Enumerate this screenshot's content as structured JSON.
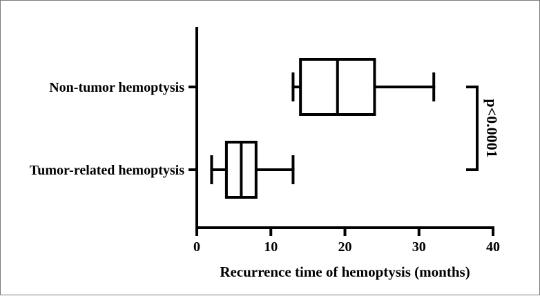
{
  "chart_data": {
    "type": "boxplot",
    "orientation": "horizontal",
    "xlabel": "Recurrence time of hemoptysis (months)",
    "xlim": [
      0,
      40
    ],
    "xticks": [
      "0",
      "10",
      "20",
      "30",
      "40"
    ],
    "grid": false,
    "categories": [
      "Non-tumor hemoptysis",
      "Tumor-related hemoptysis"
    ],
    "boxes": [
      {
        "category": "Non-tumor hemoptysis",
        "min": 13,
        "q1": 14,
        "median": 19,
        "q3": 24,
        "max": 32
      },
      {
        "category": "Tumor-related hemoptysis",
        "min": 2,
        "q1": 4,
        "median": 6,
        "q3": 8,
        "max": 13
      }
    ],
    "annotation": "p<0.0001"
  }
}
